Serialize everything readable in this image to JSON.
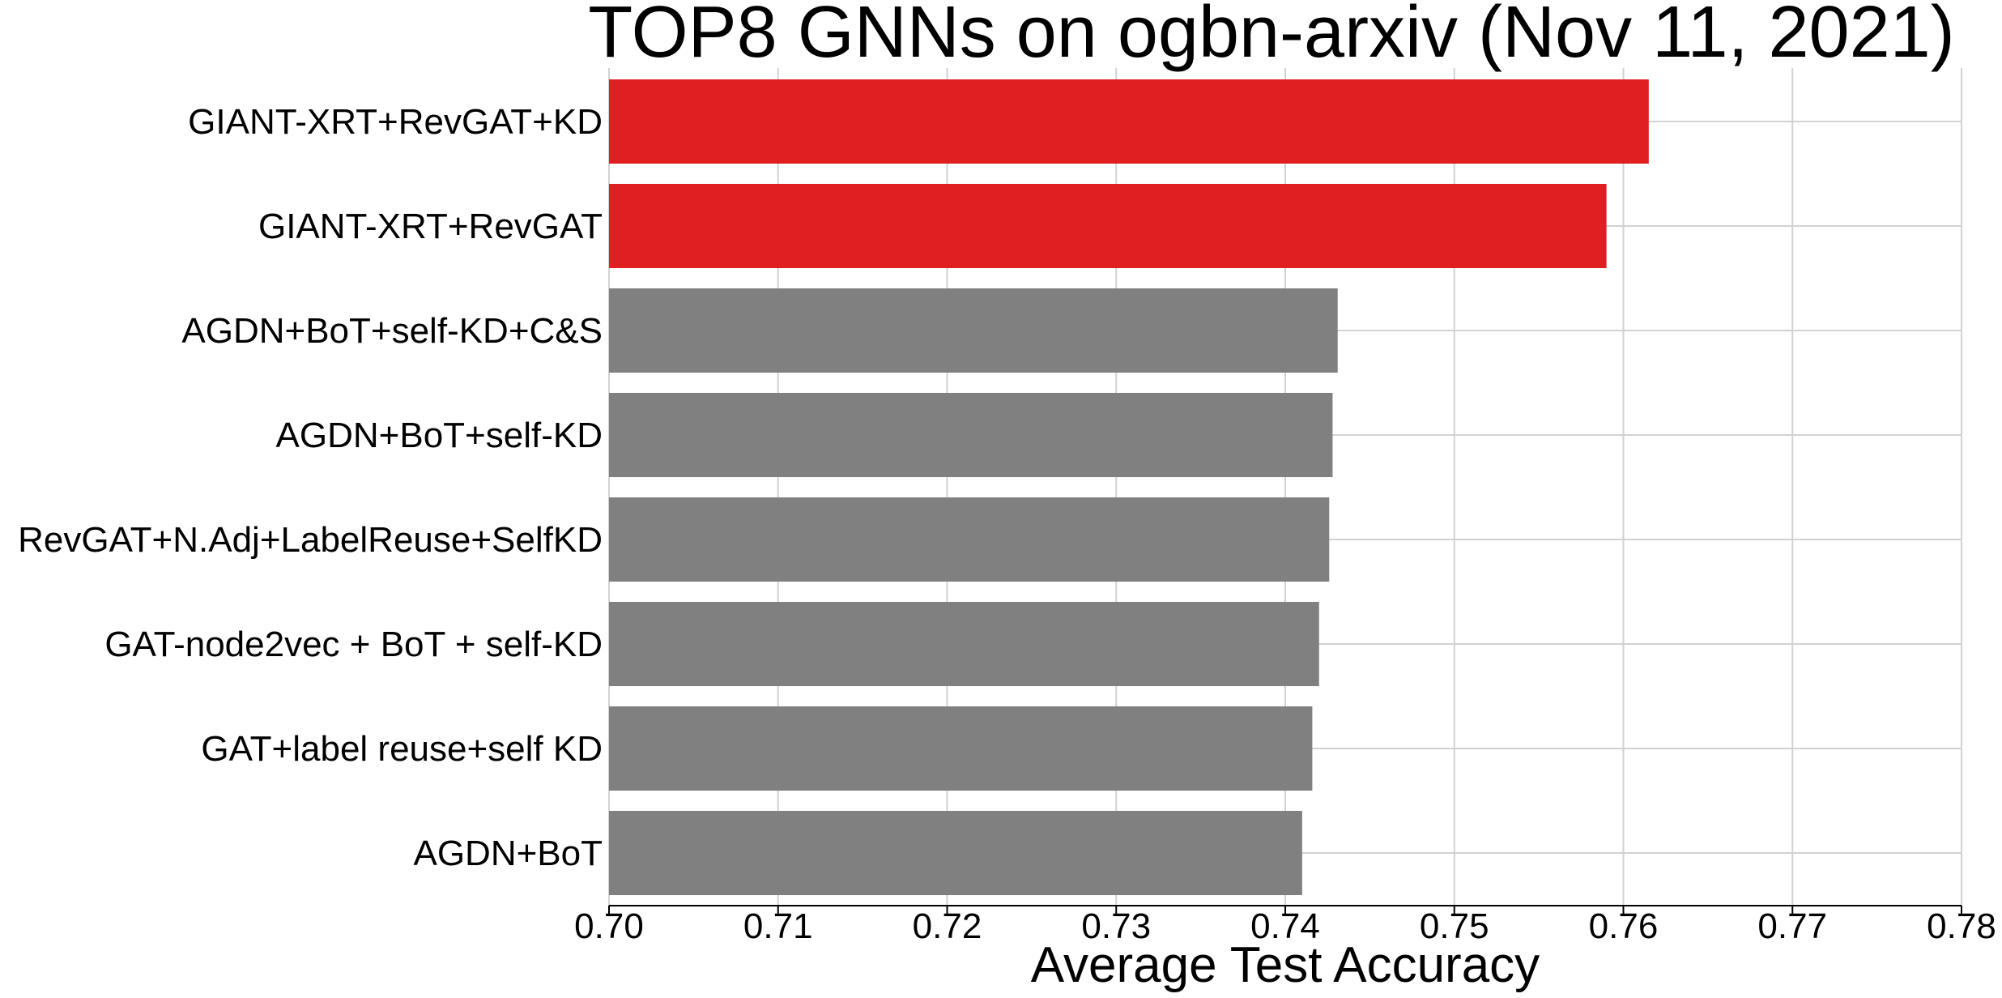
{
  "chart_data": {
    "type": "bar",
    "orientation": "horizontal",
    "title": "TOP8 GNNs on ogbn-arxiv (Nov 11, 2021)",
    "xlabel": "Average Test Accuracy",
    "ylabel": "",
    "xlim": [
      0.7,
      0.78
    ],
    "x_ticks": [
      "0.70",
      "0.71",
      "0.72",
      "0.73",
      "0.74",
      "0.75",
      "0.76",
      "0.77",
      "0.78"
    ],
    "grid": true,
    "categories": [
      "GIANT-XRT+RevGAT+KD",
      "GIANT-XRT+RevGAT",
      "AGDN+BoT+self-KD+C&S",
      "AGDN+BoT+self-KD",
      "RevGAT+N.Adj+LabelReuse+SelfKD",
      "GAT-node2vec + BoT + self-KD",
      "GAT+label reuse+self KD",
      "AGDN+BoT"
    ],
    "values": [
      0.7615,
      0.759,
      0.7431,
      0.7428,
      0.7426,
      0.742,
      0.7416,
      0.741
    ],
    "colors": [
      "#e02020",
      "#e02020",
      "#808080",
      "#808080",
      "#808080",
      "#808080",
      "#808080",
      "#808080"
    ]
  }
}
